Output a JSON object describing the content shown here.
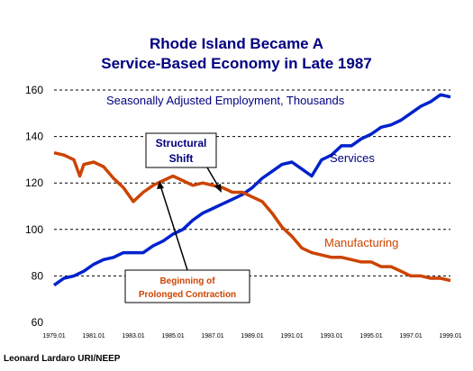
{
  "chart_data": {
    "type": "line",
    "title": "Rhode Island Became A",
    "subtitle": "Service-Based Economy in Late 1987",
    "ylabel": "",
    "xlabel": "",
    "ylim": [
      60,
      160
    ],
    "yticks": [
      60,
      80,
      100,
      120,
      140,
      160
    ],
    "xlim": [
      1979.0,
      1999.0
    ],
    "xtick_labels": [
      "1979.01",
      "1981.01",
      "1983.01",
      "1985.01",
      "1987.01",
      "1989.01",
      "1991.01",
      "1993.01",
      "1995.01",
      "1997.01",
      "1999.01"
    ],
    "grid": true,
    "annotations": {
      "units": "Seasonally Adjusted Employment, Thousands",
      "shift_line1": "Structural",
      "shift_line2": "Shift",
      "contraction_line1": "Beginning of",
      "contraction_line2": "Prolonged Contraction"
    },
    "series": [
      {
        "name": "Services",
        "color": "#0022cc",
        "x": [
          1979.0,
          1979.5,
          1980.0,
          1980.5,
          1981.0,
          1981.5,
          1982.0,
          1982.5,
          1983.0,
          1983.5,
          1984.0,
          1984.5,
          1985.0,
          1985.5,
          1986.0,
          1986.5,
          1987.0,
          1987.5,
          1988.0,
          1988.5,
          1989.0,
          1989.5,
          1990.0,
          1990.5,
          1991.0,
          1991.5,
          1992.0,
          1992.5,
          1993.0,
          1993.5,
          1994.0,
          1994.5,
          1995.0,
          1995.5,
          1996.0,
          1996.5,
          1997.0,
          1997.5,
          1998.0,
          1998.5,
          1999.0
        ],
        "values": [
          76,
          79,
          80,
          82,
          85,
          87,
          88,
          90,
          90,
          90,
          93,
          95,
          98,
          100,
          104,
          107,
          109,
          111,
          113,
          115,
          118,
          122,
          125,
          128,
          129,
          126,
          123,
          130,
          132,
          136,
          136,
          139,
          141,
          144,
          145,
          147,
          150,
          153,
          155,
          158,
          157
        ]
      },
      {
        "name": "Manufacturing",
        "color": "#cc4400",
        "x": [
          1979.0,
          1979.5,
          1980.0,
          1980.3,
          1980.5,
          1981.0,
          1981.5,
          1982.0,
          1982.5,
          1983.0,
          1983.5,
          1984.0,
          1984.5,
          1985.0,
          1985.5,
          1986.0,
          1986.5,
          1987.0,
          1987.5,
          1988.0,
          1988.5,
          1989.0,
          1989.5,
          1990.0,
          1990.5,
          1991.0,
          1991.5,
          1992.0,
          1992.5,
          1993.0,
          1993.5,
          1994.0,
          1994.5,
          1995.0,
          1995.5,
          1996.0,
          1996.5,
          1997.0,
          1997.5,
          1998.0,
          1998.5,
          1999.0
        ],
        "values": [
          133,
          132,
          130,
          123,
          128,
          129,
          127,
          122,
          118,
          112,
          116,
          119,
          121,
          123,
          121,
          119,
          120,
          119,
          118,
          116,
          116,
          114,
          112,
          107,
          101,
          97,
          92,
          90,
          89,
          88,
          88,
          87,
          86,
          86,
          84,
          84,
          82,
          80,
          80,
          79,
          79,
          78
        ]
      }
    ]
  },
  "series_labels": {
    "services": "Services",
    "manufacturing": "Manufacturing"
  },
  "footer": "Leonard Lardaro  URI/NEEP"
}
